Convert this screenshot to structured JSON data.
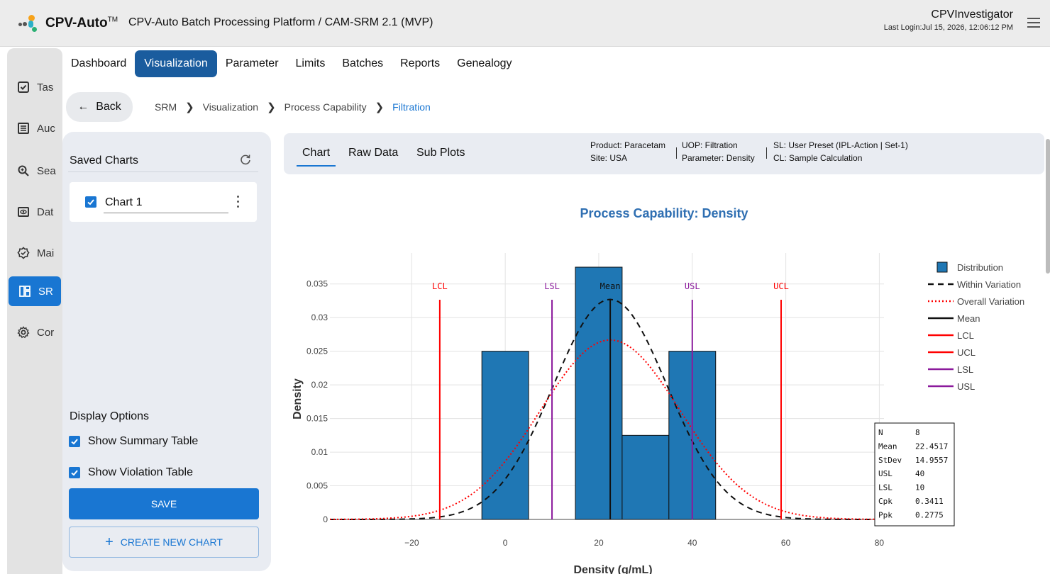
{
  "header": {
    "logo_text": "CPV-Auto",
    "logo_tm": "TM",
    "app_title": "CPV-Auto Batch Processing Platform / CAM-SRM 2.1 (MVP)",
    "user_name": "CPVInvestigator",
    "last_login": "Last Login:Jul 15, 2026, 12:06:12 PM"
  },
  "rail": {
    "items": [
      {
        "label": "Tas",
        "icon": "task-checkbox-icon"
      },
      {
        "label": "Auc",
        "icon": "audit-list-icon"
      },
      {
        "label": "Sea",
        "icon": "search-zoom-icon"
      },
      {
        "label": "Dat",
        "icon": "data-eye-icon"
      },
      {
        "label": "Mai",
        "icon": "maintenance-badge-icon"
      },
      {
        "label": "SR",
        "icon": "dashboard-grid-icon",
        "active": true
      },
      {
        "label": "Cor",
        "icon": "settings-gear-icon"
      }
    ]
  },
  "nav": {
    "tabs": [
      "Dashboard",
      "Visualization",
      "Parameter",
      "Limits",
      "Batches",
      "Reports",
      "Genealogy"
    ],
    "active_tab": "Visualization"
  },
  "breadcrumb": {
    "back_label": "Back",
    "items": [
      "SRM",
      "Visualization",
      "Process Capability",
      "Filtration"
    ]
  },
  "saved_charts": {
    "title": "Saved Charts",
    "charts": [
      {
        "name": "Chart 1",
        "checked": true
      }
    ],
    "display_options_title": "Display Options",
    "options": [
      {
        "label": "Show Summary Table",
        "checked": true
      },
      {
        "label": "Show Violation Table",
        "checked": true
      }
    ],
    "save_label": "SAVE",
    "create_label": "CREATE NEW CHART"
  },
  "chart_header": {
    "tabs": [
      "Chart",
      "Raw Data",
      "Sub Plots"
    ],
    "active_tab": "Chart",
    "product": "Product: Paracetam",
    "site": "Site: USA",
    "uop": "UOP: Filtration",
    "parameter": "Parameter: Density",
    "sl": "SL: User Preset (IPL-Action | Set-1)",
    "cl": "CL: Sample Calculation"
  },
  "chart_data": {
    "type": "bar",
    "title": "Process Capability: Density",
    "xlabel": "Density (g/mL)",
    "ylabel": "Density",
    "xlim": [
      -37.5,
      81
    ],
    "ylim": [
      0,
      0.0375
    ],
    "x_ticks": [
      -20,
      0,
      20,
      40,
      60,
      80
    ],
    "y_ticks": [
      0,
      0.005,
      0.01,
      0.015,
      0.02,
      0.025,
      0.03,
      0.035
    ],
    "y_tick_labels": [
      "0",
      "0.005",
      "0.01",
      "0.015",
      "0.02",
      "0.025",
      "0.03",
      "0.035"
    ],
    "bins": [
      {
        "x0": -5,
        "x1": 5,
        "value": 0.025
      },
      {
        "x0": 5,
        "x1": 15,
        "value": 0
      },
      {
        "x0": 15,
        "x1": 25,
        "value": 0.0375
      },
      {
        "x0": 25,
        "x1": 35,
        "value": 0.0125
      },
      {
        "x0": 35,
        "x1": 45,
        "value": 0.025
      }
    ],
    "within_sigma": 12.2,
    "overall_sigma": 14.9557,
    "vlines": [
      {
        "name": "LCL",
        "x": -14,
        "color": "#ff0000"
      },
      {
        "name": "LSL",
        "x": 10,
        "color": "#8b1a9c"
      },
      {
        "name": "Mean",
        "x": 22.4517,
        "color": "#111111"
      },
      {
        "name": "USL",
        "x": 40,
        "color": "#8b1a9c"
      },
      {
        "name": "UCL",
        "x": 59,
        "color": "#ff0000"
      }
    ],
    "legend": [
      {
        "name": "Distribution",
        "style": "box",
        "color": "#1f77b4"
      },
      {
        "name": "Within Variation",
        "style": "dash",
        "color": "#111111"
      },
      {
        "name": "Overall Variation",
        "style": "dot",
        "color": "#ff0000"
      },
      {
        "name": "Mean",
        "style": "solid",
        "color": "#111111"
      },
      {
        "name": "LCL",
        "style": "solid",
        "color": "#ff0000"
      },
      {
        "name": "UCL",
        "style": "solid",
        "color": "#ff0000"
      },
      {
        "name": "LSL",
        "style": "solid",
        "color": "#8b1a9c"
      },
      {
        "name": "USL",
        "style": "solid",
        "color": "#8b1a9c"
      }
    ],
    "legend_position": "top-right",
    "stats": [
      {
        "label": "N",
        "value": "8"
      },
      {
        "label": "Mean",
        "value": "22.4517"
      },
      {
        "label": "StDev",
        "value": "14.9557"
      },
      {
        "label": "USL",
        "value": "40"
      },
      {
        "label": "LSL",
        "value": "10"
      },
      {
        "label": "Cpk",
        "value": "0.3411"
      },
      {
        "label": "Ppk",
        "value": "0.2775"
      }
    ],
    "grid": true
  },
  "colors": {
    "accent": "#1976d2",
    "nav_active": "#1a5c9e",
    "bar_fill": "#1f77b4",
    "title": "#2f6fb2"
  }
}
